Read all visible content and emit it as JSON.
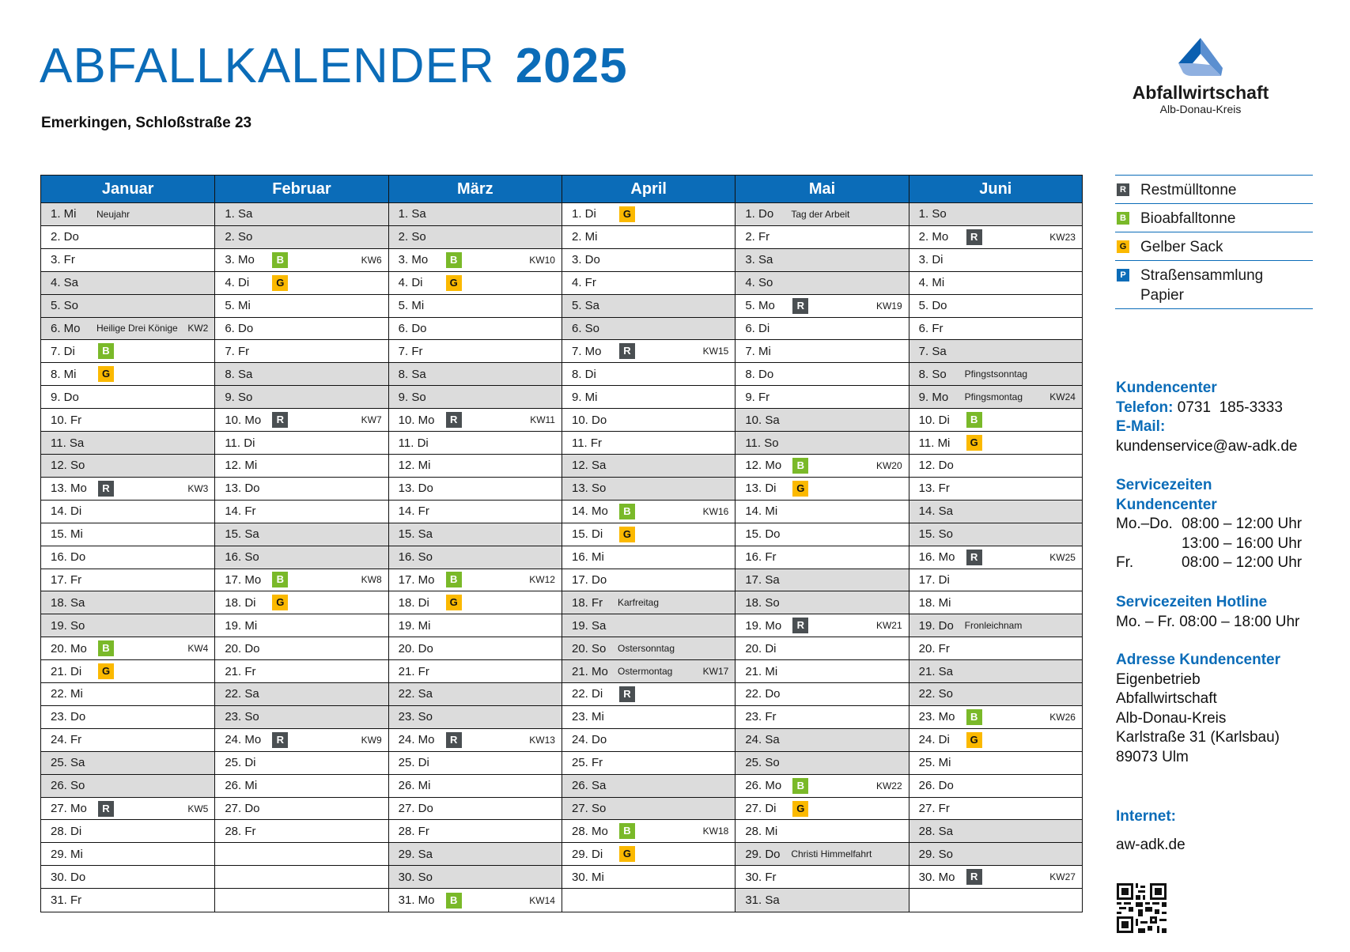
{
  "header": {
    "title": "ABFALLKALENDER",
    "year": "2025",
    "address": "Emerkingen, Schloßstraße 23"
  },
  "logo": {
    "name": "Abfallwirtschaft",
    "subtitle": "Alb-Donau-Kreis",
    "colors": [
      "#0b5fb0",
      "#5b8fd0",
      "#8fb0e0"
    ]
  },
  "colors": {
    "brand_blue": "#0b6cb8",
    "restmuell": "#4a4f52",
    "bio": "#7ab929",
    "gelber_sack": "#fbb900",
    "weekend_gray": "#dcdcdc"
  },
  "legend": [
    {
      "code": "R",
      "label": "Restmülltonne"
    },
    {
      "code": "B",
      "label": "Bioabfalltonne"
    },
    {
      "code": "G",
      "label": "Gelber Sack"
    },
    {
      "code": "P",
      "label": "Straßensammlung Papier"
    }
  ],
  "contact": {
    "kundencenter_heading": "Kundencenter",
    "telefon_label": "Telefon:",
    "telefon": "0731  185-3333",
    "email_label": "E-Mail:",
    "email": "kundenservice@aw-adk.de",
    "service_heading_1": "Servicezeiten",
    "service_heading_2": "Kundencenter",
    "service_rows": [
      {
        "day": "Mo.–Do.",
        "time": "08:00 – 12:00 Uhr"
      },
      {
        "day": "",
        "time": "13:00 – 16:00 Uhr"
      },
      {
        "day": "Fr.",
        "time": "08:00 – 12:00 Uhr"
      }
    ],
    "hotline_heading": "Servicezeiten Hotline",
    "hotline_hours": "Mo. – Fr. 08:00 – 18:00 Uhr",
    "address_heading": "Adresse Kundencenter",
    "address_lines": [
      "Eigenbetrieb",
      "Abfallwirtschaft",
      "Alb-Donau-Kreis",
      "Karlstraße 31 (Karlsbau)",
      "89073 Ulm"
    ],
    "internet_label": "Internet:",
    "internet": "aw-adk.de"
  },
  "months": [
    {
      "name": "Januar",
      "days": [
        {
          "d": "1. Mi",
          "gray": true,
          "hol": "Neujahr"
        },
        {
          "d": "2. Do"
        },
        {
          "d": "3. Fr"
        },
        {
          "d": "4. Sa",
          "gray": true
        },
        {
          "d": "5. So",
          "gray": true
        },
        {
          "d": "6. Mo",
          "gray": true,
          "hol": "Heilige Drei Könige",
          "kw": "KW2"
        },
        {
          "d": "7. Di",
          "badge": "B"
        },
        {
          "d": "8. Mi",
          "badge": "G"
        },
        {
          "d": "9. Do"
        },
        {
          "d": "10. Fr"
        },
        {
          "d": "11. Sa",
          "gray": true
        },
        {
          "d": "12. So",
          "gray": true
        },
        {
          "d": "13. Mo",
          "badge": "R",
          "kw": "KW3"
        },
        {
          "d": "14. Di"
        },
        {
          "d": "15. Mi"
        },
        {
          "d": "16. Do"
        },
        {
          "d": "17. Fr"
        },
        {
          "d": "18. Sa",
          "gray": true
        },
        {
          "d": "19. So",
          "gray": true
        },
        {
          "d": "20. Mo",
          "badge": "B",
          "kw": "KW4"
        },
        {
          "d": "21. Di",
          "badge": "G"
        },
        {
          "d": "22. Mi"
        },
        {
          "d": "23. Do"
        },
        {
          "d": "24. Fr"
        },
        {
          "d": "25. Sa",
          "gray": true
        },
        {
          "d": "26. So",
          "gray": true
        },
        {
          "d": "27. Mo",
          "badge": "R",
          "kw": "KW5"
        },
        {
          "d": "28. Di"
        },
        {
          "d": "29. Mi"
        },
        {
          "d": "30. Do"
        },
        {
          "d": "31. Fr"
        }
      ]
    },
    {
      "name": "Februar",
      "days": [
        {
          "d": "1. Sa",
          "gray": true
        },
        {
          "d": "2. So",
          "gray": true
        },
        {
          "d": "3. Mo",
          "badge": "B",
          "kw": "KW6"
        },
        {
          "d": "4. Di",
          "badge": "G"
        },
        {
          "d": "5. Mi"
        },
        {
          "d": "6. Do"
        },
        {
          "d": "7. Fr"
        },
        {
          "d": "8. Sa",
          "gray": true
        },
        {
          "d": "9. So",
          "gray": true
        },
        {
          "d": "10. Mo",
          "badge": "R",
          "kw": "KW7"
        },
        {
          "d": "11. Di"
        },
        {
          "d": "12. Mi"
        },
        {
          "d": "13. Do"
        },
        {
          "d": "14. Fr"
        },
        {
          "d": "15. Sa",
          "gray": true
        },
        {
          "d": "16. So",
          "gray": true
        },
        {
          "d": "17. Mo",
          "badge": "B",
          "kw": "KW8"
        },
        {
          "d": "18. Di",
          "badge": "G"
        },
        {
          "d": "19. Mi"
        },
        {
          "d": "20. Do"
        },
        {
          "d": "21. Fr"
        },
        {
          "d": "22. Sa",
          "gray": true
        },
        {
          "d": "23. So",
          "gray": true
        },
        {
          "d": "24. Mo",
          "badge": "R",
          "kw": "KW9"
        },
        {
          "d": "25. Di"
        },
        {
          "d": "26. Mi"
        },
        {
          "d": "27. Do"
        },
        {
          "d": "28. Fr"
        },
        {
          "d": ""
        },
        {
          "d": ""
        },
        {
          "d": ""
        }
      ]
    },
    {
      "name": "März",
      "days": [
        {
          "d": "1. Sa",
          "gray": true
        },
        {
          "d": "2. So",
          "gray": true
        },
        {
          "d": "3. Mo",
          "badge": "B",
          "kw": "KW10"
        },
        {
          "d": "4. Di",
          "badge": "G"
        },
        {
          "d": "5. Mi"
        },
        {
          "d": "6. Do"
        },
        {
          "d": "7. Fr"
        },
        {
          "d": "8. Sa",
          "gray": true
        },
        {
          "d": "9. So",
          "gray": true
        },
        {
          "d": "10. Mo",
          "badge": "R",
          "kw": "KW11"
        },
        {
          "d": "11. Di"
        },
        {
          "d": "12. Mi"
        },
        {
          "d": "13. Do"
        },
        {
          "d": "14. Fr"
        },
        {
          "d": "15. Sa",
          "gray": true
        },
        {
          "d": "16. So",
          "gray": true
        },
        {
          "d": "17. Mo",
          "badge": "B",
          "kw": "KW12"
        },
        {
          "d": "18. Di",
          "badge": "G"
        },
        {
          "d": "19. Mi"
        },
        {
          "d": "20. Do"
        },
        {
          "d": "21. Fr"
        },
        {
          "d": "22. Sa",
          "gray": true
        },
        {
          "d": "23. So",
          "gray": true
        },
        {
          "d": "24. Mo",
          "badge": "R",
          "kw": "KW13"
        },
        {
          "d": "25. Di"
        },
        {
          "d": "26. Mi"
        },
        {
          "d": "27. Do"
        },
        {
          "d": "28. Fr"
        },
        {
          "d": "29. Sa",
          "gray": true
        },
        {
          "d": "30. So",
          "gray": true
        },
        {
          "d": "31. Mo",
          "badge": "B",
          "kw": "KW14"
        }
      ]
    },
    {
      "name": "April",
      "days": [
        {
          "d": "1. Di",
          "badge": "G"
        },
        {
          "d": "2. Mi"
        },
        {
          "d": "3. Do"
        },
        {
          "d": "4. Fr"
        },
        {
          "d": "5. Sa",
          "gray": true
        },
        {
          "d": "6. So",
          "gray": true
        },
        {
          "d": "7. Mo",
          "badge": "R",
          "kw": "KW15"
        },
        {
          "d": "8. Di"
        },
        {
          "d": "9. Mi"
        },
        {
          "d": "10. Do"
        },
        {
          "d": "11. Fr"
        },
        {
          "d": "12. Sa",
          "gray": true
        },
        {
          "d": "13. So",
          "gray": true
        },
        {
          "d": "14. Mo",
          "badge": "B",
          "kw": "KW16"
        },
        {
          "d": "15. Di",
          "badge": "G"
        },
        {
          "d": "16. Mi"
        },
        {
          "d": "17. Do"
        },
        {
          "d": "18. Fr",
          "gray": true,
          "hol": "Karfreitag"
        },
        {
          "d": "19. Sa",
          "gray": true
        },
        {
          "d": "20. So",
          "gray": true,
          "hol": "Ostersonntag"
        },
        {
          "d": "21. Mo",
          "gray": true,
          "hol": "Ostermontag",
          "kw": "KW17"
        },
        {
          "d": "22. Di",
          "badge": "R"
        },
        {
          "d": "23. Mi"
        },
        {
          "d": "24. Do"
        },
        {
          "d": "25. Fr"
        },
        {
          "d": "26. Sa",
          "gray": true
        },
        {
          "d": "27. So",
          "gray": true
        },
        {
          "d": "28. Mo",
          "badge": "B",
          "kw": "KW18"
        },
        {
          "d": "29. Di",
          "badge": "G"
        },
        {
          "d": "30. Mi"
        },
        {
          "d": ""
        }
      ]
    },
    {
      "name": "Mai",
      "days": [
        {
          "d": "1. Do",
          "gray": true,
          "hol": "Tag der Arbeit"
        },
        {
          "d": "2. Fr"
        },
        {
          "d": "3. Sa",
          "gray": true
        },
        {
          "d": "4. So",
          "gray": true
        },
        {
          "d": "5. Mo",
          "badge": "R",
          "kw": "KW19"
        },
        {
          "d": "6. Di"
        },
        {
          "d": "7. Mi"
        },
        {
          "d": "8. Do"
        },
        {
          "d": "9. Fr"
        },
        {
          "d": "10. Sa",
          "gray": true
        },
        {
          "d": "11. So",
          "gray": true
        },
        {
          "d": "12. Mo",
          "badge": "B",
          "kw": "KW20"
        },
        {
          "d": "13. Di",
          "badge": "G"
        },
        {
          "d": "14. Mi"
        },
        {
          "d": "15. Do"
        },
        {
          "d": "16. Fr"
        },
        {
          "d": "17. Sa",
          "gray": true
        },
        {
          "d": "18. So",
          "gray": true
        },
        {
          "d": "19. Mo",
          "badge": "R",
          "kw": "KW21"
        },
        {
          "d": "20. Di"
        },
        {
          "d": "21. Mi"
        },
        {
          "d": "22. Do"
        },
        {
          "d": "23. Fr"
        },
        {
          "d": "24. Sa",
          "gray": true
        },
        {
          "d": "25. So",
          "gray": true
        },
        {
          "d": "26. Mo",
          "badge": "B",
          "kw": "KW22"
        },
        {
          "d": "27. Di",
          "badge": "G"
        },
        {
          "d": "28. Mi"
        },
        {
          "d": "29. Do",
          "gray": true,
          "hol": "Christi Himmelfahrt"
        },
        {
          "d": "30. Fr"
        },
        {
          "d": "31. Sa",
          "gray": true
        }
      ]
    },
    {
      "name": "Juni",
      "days": [
        {
          "d": "1. So",
          "gray": true
        },
        {
          "d": "2. Mo",
          "badge": "R",
          "kw": "KW23"
        },
        {
          "d": "3. Di"
        },
        {
          "d": "4. Mi"
        },
        {
          "d": "5. Do"
        },
        {
          "d": "6. Fr"
        },
        {
          "d": "7. Sa",
          "gray": true
        },
        {
          "d": "8. So",
          "gray": true,
          "hol": "Pfingstsonntag"
        },
        {
          "d": "9. Mo",
          "gray": true,
          "hol": "Pfingsmontag",
          "kw": "KW24"
        },
        {
          "d": "10. Di",
          "badge": "B"
        },
        {
          "d": "11. Mi",
          "badge": "G"
        },
        {
          "d": "12. Do"
        },
        {
          "d": "13. Fr"
        },
        {
          "d": "14. Sa",
          "gray": true
        },
        {
          "d": "15. So",
          "gray": true
        },
        {
          "d": "16. Mo",
          "badge": "R",
          "kw": "KW25"
        },
        {
          "d": "17. Di"
        },
        {
          "d": "18. Mi"
        },
        {
          "d": "19. Do",
          "gray": true,
          "hol": "Fronleichnam"
        },
        {
          "d": "20. Fr"
        },
        {
          "d": "21. Sa",
          "gray": true
        },
        {
          "d": "22. So",
          "gray": true
        },
        {
          "d": "23. Mo",
          "badge": "B",
          "kw": "KW26"
        },
        {
          "d": "24. Di",
          "badge": "G"
        },
        {
          "d": "25. Mi"
        },
        {
          "d": "26. Do"
        },
        {
          "d": "27. Fr"
        },
        {
          "d": "28. Sa",
          "gray": true
        },
        {
          "d": "29. So",
          "gray": true
        },
        {
          "d": "30. Mo",
          "badge": "R",
          "kw": "KW27"
        },
        {
          "d": ""
        }
      ]
    }
  ]
}
